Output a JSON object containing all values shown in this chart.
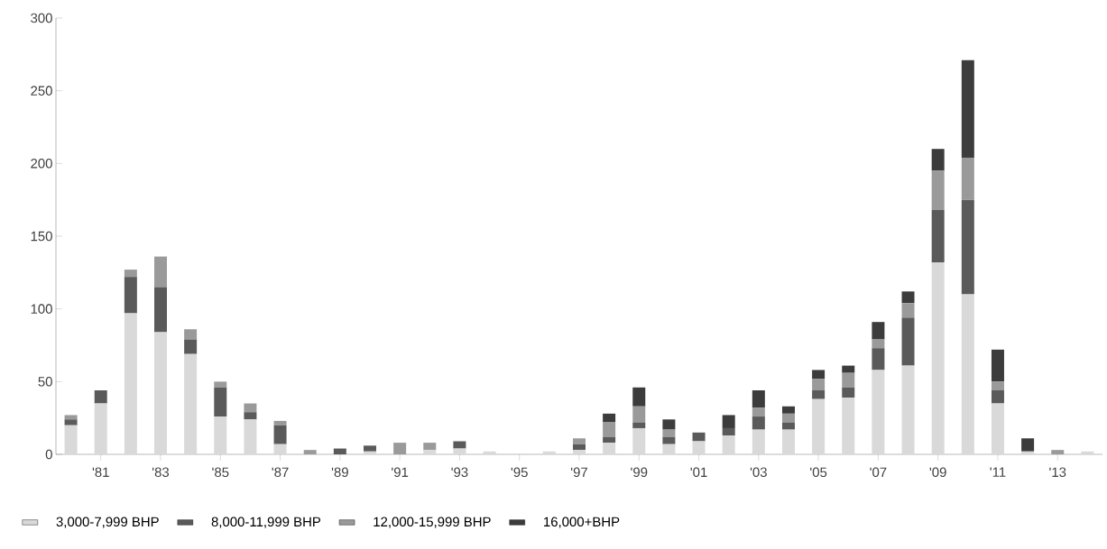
{
  "chart_data": {
    "type": "bar",
    "stacked": true,
    "categories": [
      null,
      "'81",
      null,
      "'83",
      null,
      "'85",
      null,
      "'87",
      null,
      "'89",
      null,
      "'91",
      null,
      "'93",
      null,
      "'95",
      null,
      "'97",
      null,
      "'99",
      null,
      "'01",
      null,
      "'03",
      null,
      "'05",
      null,
      "'07",
      null,
      "'09",
      null,
      "'11",
      null,
      "'13",
      null
    ],
    "series": [
      {
        "name": "3,000-7,999 BHP",
        "color": "#d9d9d9",
        "values": [
          20,
          35,
          97,
          84,
          69,
          26,
          24,
          7,
          0,
          0,
          2,
          0,
          3,
          4,
          2,
          0,
          2,
          3,
          8,
          18,
          7,
          9,
          13,
          17,
          17,
          38,
          39,
          58,
          61,
          132,
          110,
          35,
          2,
          0,
          2
        ]
      },
      {
        "name": "8,000-11,999 BHP",
        "color": "#5a5a5a",
        "values": [
          4,
          9,
          25,
          31,
          10,
          20,
          5,
          13,
          0,
          4,
          4,
          0,
          0,
          5,
          0,
          0,
          0,
          4,
          4,
          4,
          5,
          6,
          5,
          9,
          5,
          6,
          7,
          15,
          33,
          36,
          65,
          9,
          0,
          0,
          0
        ]
      },
      {
        "name": "12,000-15,999 BHP",
        "color": "#9a9a9a",
        "values": [
          3,
          0,
          5,
          21,
          7,
          4,
          6,
          3,
          3,
          0,
          0,
          8,
          5,
          0,
          0,
          0,
          0,
          4,
          10,
          11,
          5,
          0,
          0,
          6,
          6,
          8,
          10,
          6,
          10,
          27,
          29,
          6,
          0,
          3,
          0
        ]
      },
      {
        "name": "16,000+BHP",
        "color": "#3c3c3c",
        "values": [
          0,
          0,
          0,
          0,
          0,
          0,
          0,
          0,
          0,
          0,
          0,
          0,
          0,
          0,
          0,
          0,
          0,
          0,
          6,
          13,
          7,
          0,
          9,
          12,
          5,
          6,
          5,
          12,
          8,
          15,
          67,
          22,
          9,
          0,
          0
        ]
      }
    ],
    "ylim": [
      0,
      300
    ],
    "yticks": [
      0,
      50,
      100,
      150,
      200,
      250,
      300
    ],
    "grid": false,
    "legend": "bottom"
  }
}
